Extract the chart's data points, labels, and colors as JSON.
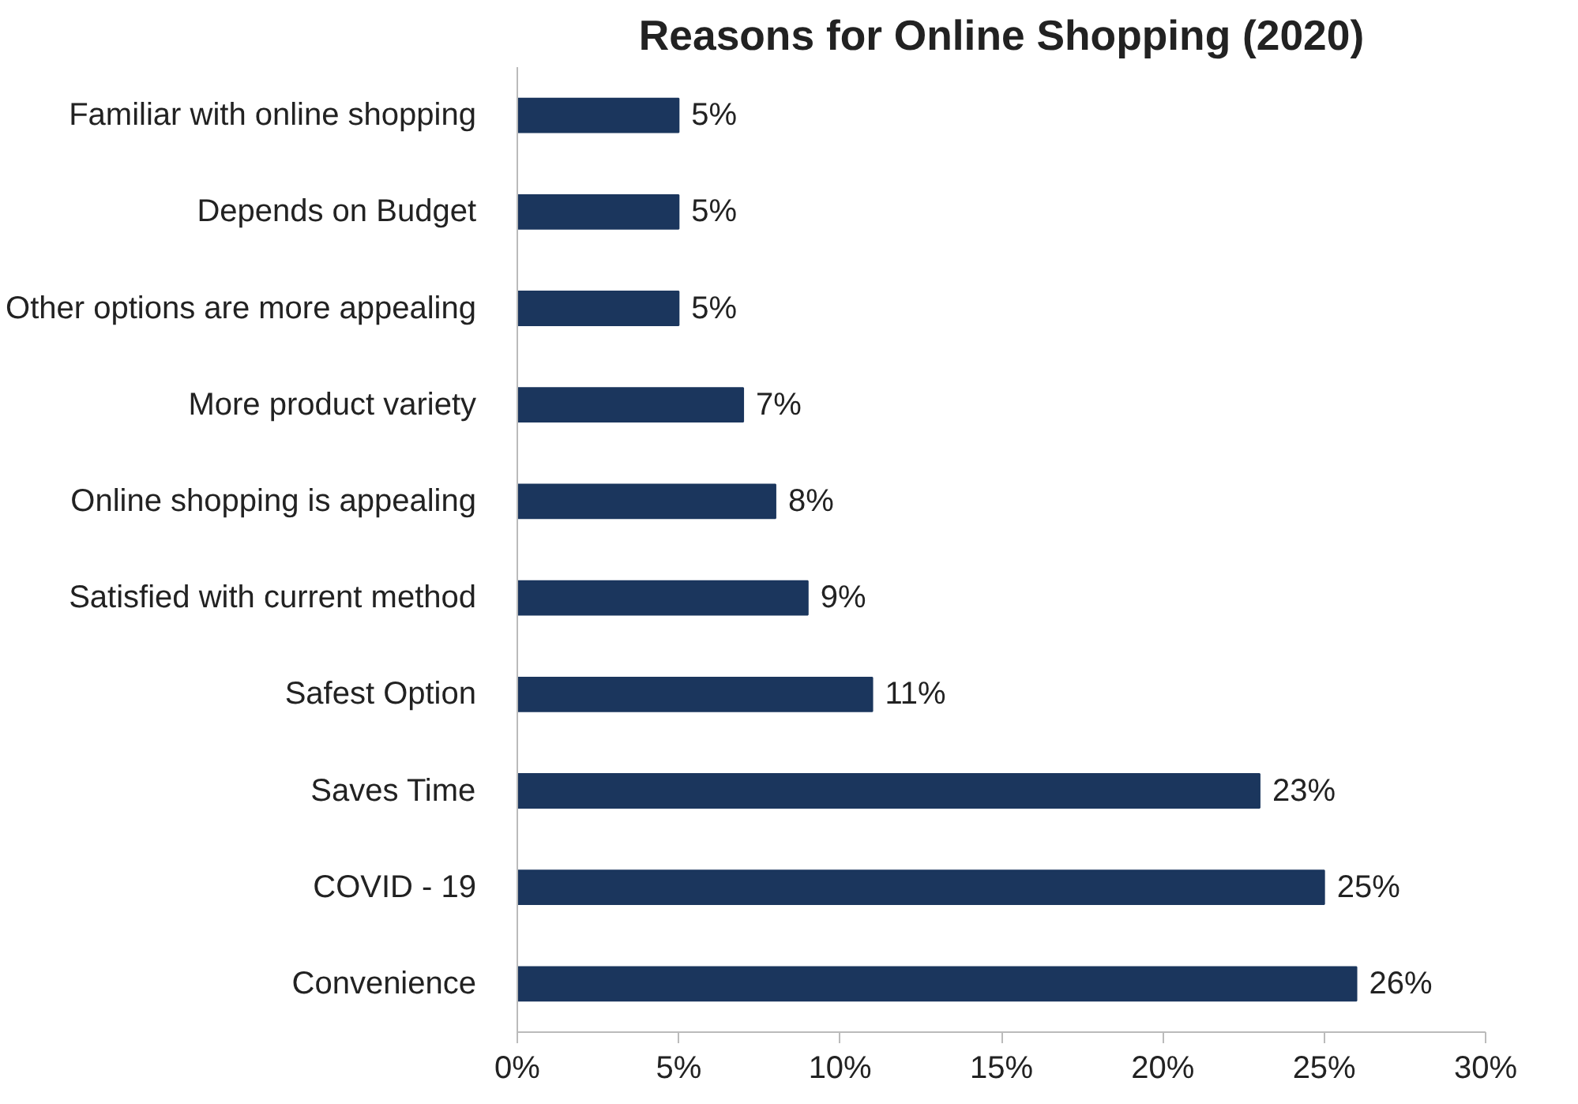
{
  "chart_data": {
    "type": "bar",
    "orientation": "horizontal",
    "title": "Reasons for Online Shopping (2020)",
    "categories": [
      "Familiar with online shopping",
      "Depends on Budget",
      "Other options are more appealing",
      "More product variety",
      "Online shopping is appealing",
      "Satisfied with current method",
      "Safest Option",
      "Saves Time",
      "COVID - 19",
      "Convenience"
    ],
    "values": [
      5,
      5,
      5,
      7,
      8,
      9,
      11,
      23,
      25,
      26
    ],
    "value_labels": [
      "5%",
      "5%",
      "5%",
      "7%",
      "8%",
      "9%",
      "11%",
      "23%",
      "25%",
      "26%"
    ],
    "color": "#1b365d",
    "xlim": [
      0,
      30
    ],
    "xticks": [
      {
        "value": 0,
        "label": "0%"
      },
      {
        "value": 5,
        "label": "5%"
      },
      {
        "value": 10,
        "label": "10%"
      },
      {
        "value": 15,
        "label": "15%"
      },
      {
        "value": 20,
        "label": "20%"
      },
      {
        "value": 25,
        "label": "25%"
      },
      {
        "value": 30,
        "label": "30%"
      }
    ],
    "grid": false
  }
}
